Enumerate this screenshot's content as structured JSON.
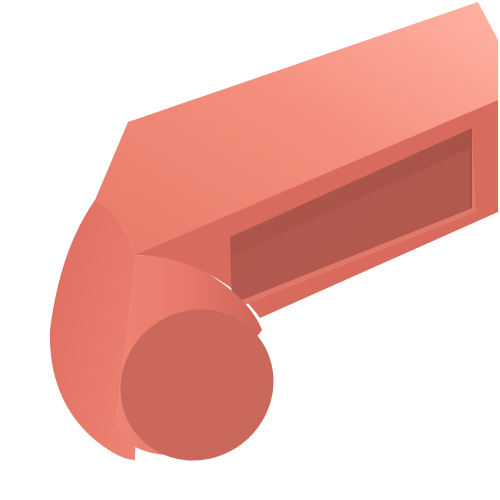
{
  "scene": {
    "subject": "3d-rendered-bracket-part",
    "colors": {
      "background": "#ffffff",
      "base": "#e8786a",
      "top_face_light": "#ffb3a4",
      "top_face_mid": "#f58f7d",
      "top_face_dark": "#e87a69",
      "side_face_light": "#ef8574",
      "side_face_dark": "#d86b5d",
      "cylinder_side_dark": "#cd6558",
      "cylinder_cap": "#c9685b",
      "slot_inner_dark": "#9e4d43",
      "slot_inner_mid": "#b35a4f",
      "slot_rim": "#e07868"
    }
  }
}
